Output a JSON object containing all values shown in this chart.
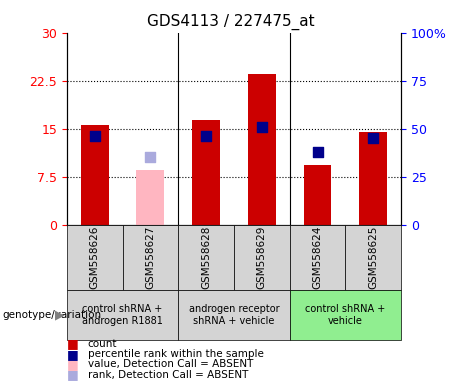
{
  "title": "GDS4113 / 227475_at",
  "samples": [
    "GSM558626",
    "GSM558627",
    "GSM558628",
    "GSM558629",
    "GSM558624",
    "GSM558625"
  ],
  "count_values": [
    15.5,
    8.5,
    16.3,
    23.6,
    9.3,
    14.5
  ],
  "count_absent": [
    false,
    true,
    false,
    false,
    false,
    false
  ],
  "percentile_values": [
    46,
    35,
    46,
    51,
    38,
    45
  ],
  "percentile_absent": [
    false,
    true,
    false,
    false,
    false,
    false
  ],
  "left_ylim": [
    0,
    30
  ],
  "right_ylim": [
    0,
    100
  ],
  "left_yticks": [
    0,
    7.5,
    15,
    22.5,
    30
  ],
  "right_yticks": [
    0,
    25,
    50,
    75,
    100
  ],
  "left_yticklabels": [
    "0",
    "7.5",
    "15",
    "22.5",
    "30"
  ],
  "right_yticklabels": [
    "0",
    "25",
    "50",
    "75",
    "100%"
  ],
  "groups": [
    {
      "label": "control shRNA +\nandrogen R1881",
      "samples": [
        0,
        1
      ],
      "color": "#d4d4d4"
    },
    {
      "label": "androgen receptor\nshRNA + vehicle",
      "samples": [
        2,
        3
      ],
      "color": "#d4d4d4"
    },
    {
      "label": "control shRNA +\nvehicle",
      "samples": [
        4,
        5
      ],
      "color": "#90ee90"
    }
  ],
  "bar_color_present": "#cc0000",
  "bar_color_absent": "#ffb6c1",
  "dot_color_present": "#00008b",
  "dot_color_absent": "#aaaadd",
  "bar_width": 0.5,
  "dot_size": 50,
  "legend_items": [
    {
      "label": "count",
      "color": "#cc0000"
    },
    {
      "label": "percentile rank within the sample",
      "color": "#00008b"
    },
    {
      "label": "value, Detection Call = ABSENT",
      "color": "#ffb6c1"
    },
    {
      "label": "rank, Detection Call = ABSENT",
      "color": "#aaaadd"
    }
  ],
  "genotype_label": "genotype/variation",
  "plot_bg": "#ffffff",
  "ax_bg": "#ffffff",
  "grid_color": "#000000",
  "grid_linewidth": 0.8,
  "sample_box_color": "#d4d4d4",
  "group_sep_color": "#000000"
}
